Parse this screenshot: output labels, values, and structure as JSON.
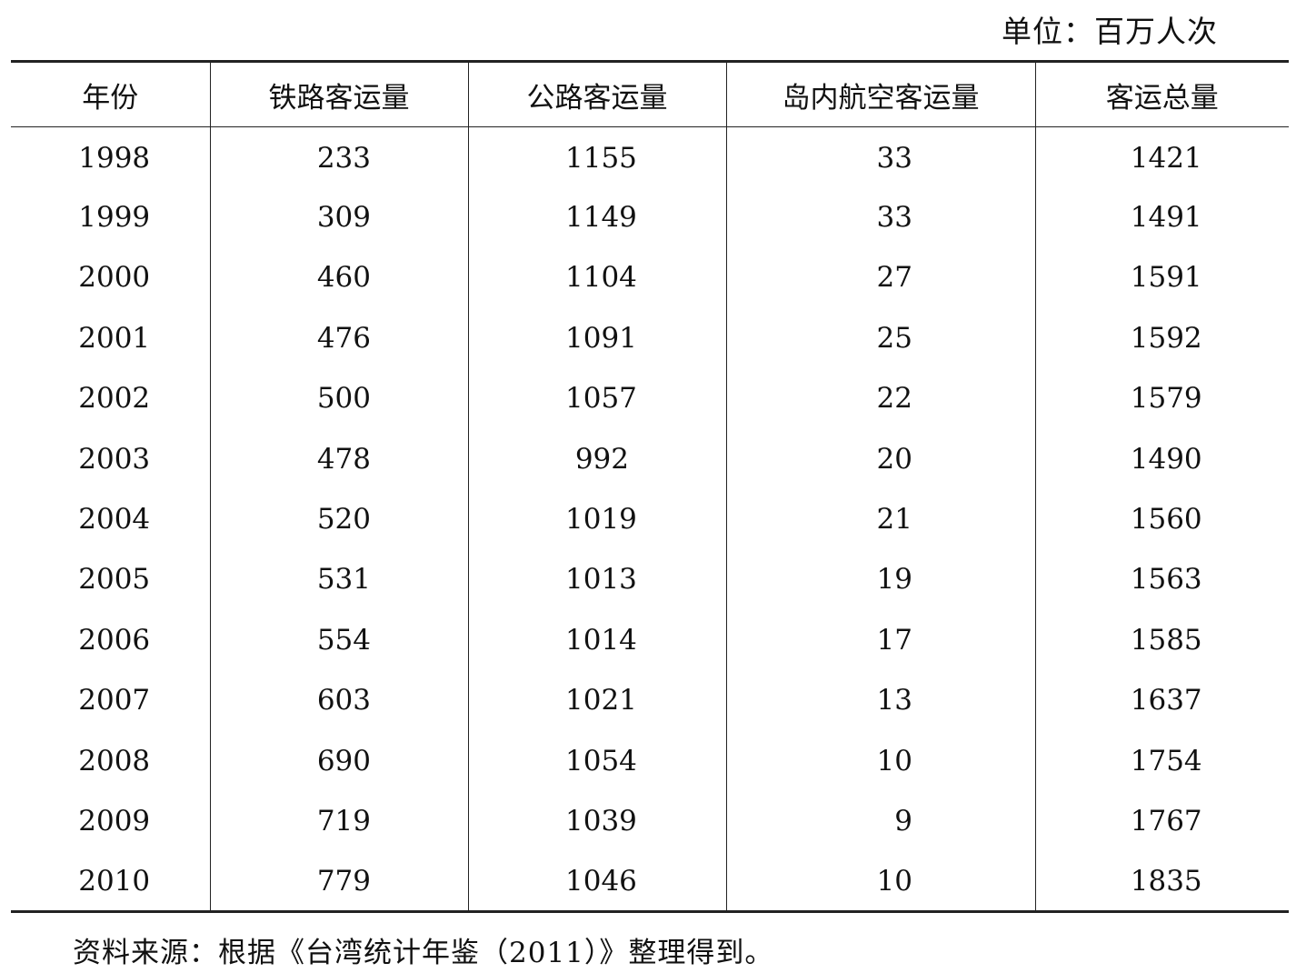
{
  "unit": "单位：百万人次",
  "table": {
    "headers": [
      "年份",
      "铁路客运量",
      "公路客运量",
      "岛内航空客运量",
      "客运总量"
    ],
    "rows": [
      [
        "1998",
        "233",
        "1155",
        "33",
        "1421"
      ],
      [
        "1999",
        "309",
        "1149",
        "33",
        "1491"
      ],
      [
        "2000",
        "460",
        "1104",
        "27",
        "1591"
      ],
      [
        "2001",
        "476",
        "1091",
        "25",
        "1592"
      ],
      [
        "2002",
        "500",
        "1057",
        "22",
        "1579"
      ],
      [
        "2003",
        "478",
        "992",
        "20",
        "1490"
      ],
      [
        "2004",
        "520",
        "1019",
        "21",
        "1560"
      ],
      [
        "2005",
        "531",
        "1013",
        "19",
        "1563"
      ],
      [
        "2006",
        "554",
        "1014",
        "17",
        "1585"
      ],
      [
        "2007",
        "603",
        "1021",
        "13",
        "1637"
      ],
      [
        "2008",
        "690",
        "1054",
        "10",
        "1754"
      ],
      [
        "2009",
        "719",
        "1039",
        "9",
        "1767"
      ],
      [
        "2010",
        "779",
        "1046",
        "10",
        "1835"
      ]
    ]
  },
  "source": "资料来源：根据《台湾统计年鉴（2011）》整理得到。"
}
